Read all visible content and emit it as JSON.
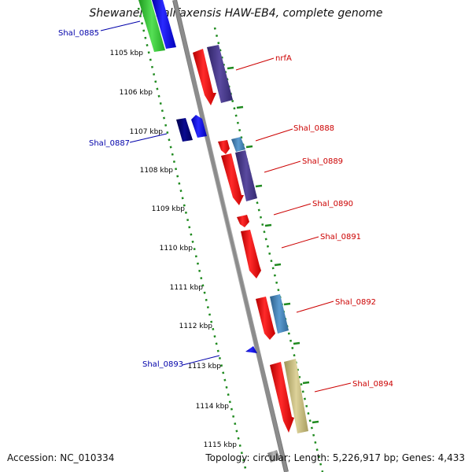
{
  "title": "Shewanella halifaxensis HAW-EB4, complete genome",
  "footer": {
    "accession": "Accession: NC_010334",
    "summary": "Topology: circular; Length: 5,226,917 bp; Genes: 4,433"
  },
  "scale": {
    "unit": "kbp",
    "ticks": [
      "1105 kbp",
      "1106 kbp",
      "1107 kbp",
      "1108 kbp",
      "1109 kbp",
      "1110 kbp",
      "1111 kbp",
      "1112 kbp",
      "1113 kbp",
      "1114 kbp",
      "1115 kbp"
    ]
  },
  "genes": [
    {
      "name": "Shal_0885",
      "color": "#0000cc"
    },
    {
      "name": "nrfA",
      "color": "#cc0000"
    },
    {
      "name": "Shal_0887",
      "color": "#0000cc"
    },
    {
      "name": "Shal_0888",
      "color": "#cc0000"
    },
    {
      "name": "Shal_0889",
      "color": "#cc0000"
    },
    {
      "name": "Shal_0890",
      "color": "#cc0000"
    },
    {
      "name": "Shal_0891",
      "color": "#cc0000"
    },
    {
      "name": "Shal_0892",
      "color": "#cc0000"
    },
    {
      "name": "Shal_0893",
      "color": "#0000cc"
    },
    {
      "name": "Shal_0894",
      "color": "#cc0000"
    }
  ],
  "colors": {
    "backbone": "#8c8c8c",
    "dots": "#1f8a1f",
    "red_gene": "#ee1111",
    "blue_gene": "#1111ee",
    "navy_gene": "#000080",
    "purple_feature": "#4b3a8c",
    "steel_feature": "#4682b4",
    "khaki_feature": "#c8bc78",
    "green_feature": "#33cc33"
  }
}
